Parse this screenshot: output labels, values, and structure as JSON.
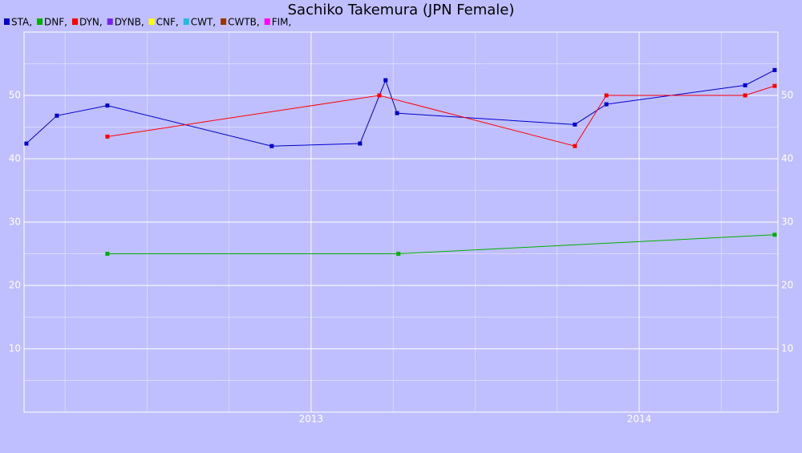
{
  "chart_data": {
    "type": "line",
    "title": "Sachiko Takemura (JPN Female)",
    "xlim": [
      2012.125,
      2014.423
    ],
    "xticks": [
      2013,
      2014
    ],
    "ylim": [
      0,
      60
    ],
    "yticks": [
      10,
      20,
      30,
      40,
      50
    ],
    "grid": true,
    "series": [
      {
        "name": "STA,",
        "color": "#0000cc",
        "x": [
          2012.132,
          2012.225,
          2012.379,
          2012.88,
          2013.149,
          2013.227,
          2013.262,
          2013.804,
          2013.9,
          2014.323,
          2014.413
        ],
        "values": [
          42.4,
          46.8,
          48.4,
          42.0,
          42.4,
          52.4,
          47.2,
          45.4,
          48.6,
          51.6,
          54.0
        ]
      },
      {
        "name": "DNF,",
        "color": "#00b000",
        "x": [
          2012.379,
          2013.266,
          2014.413
        ],
        "values": [
          25,
          25,
          28
        ]
      },
      {
        "name": "DYN,",
        "color": "#ff0000",
        "x": [
          2012.379,
          2013.208,
          2013.804,
          2013.9,
          2014.323,
          2014.413
        ],
        "values": [
          43.5,
          50,
          42,
          50,
          50,
          51.5
        ]
      },
      {
        "name": "DYNB,",
        "color": "#7722ee",
        "x": [],
        "values": []
      },
      {
        "name": "CNF,",
        "color": "#ffff00",
        "x": [],
        "values": []
      },
      {
        "name": "CWT,",
        "color": "#22bbdd",
        "x": [],
        "values": []
      },
      {
        "name": "CWTB,",
        "color": "#993300",
        "x": [],
        "values": []
      },
      {
        "name": "FIM,",
        "color": "#ff00ff",
        "x": [],
        "values": []
      }
    ]
  }
}
